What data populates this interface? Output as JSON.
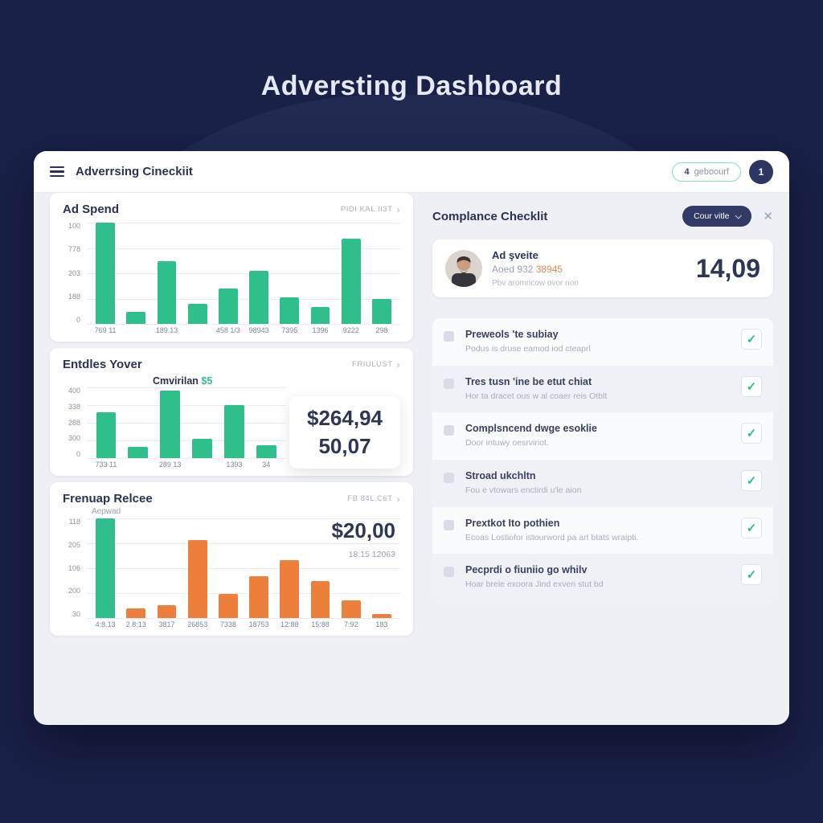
{
  "page": {
    "title": "Adversting Dashboard"
  },
  "colors": {
    "background_navy": "#1a2147",
    "panel_gray": "#eef0f5",
    "accent_green": "#2fbf8b",
    "accent_orange": "#ec7f3b",
    "dark_text": "#2e3656",
    "dark_pill": "#333a66",
    "meta_orange": "#e08a5a"
  },
  "navbar": {
    "title": "Adverrsing Cineckiit",
    "action_icon": "4",
    "action_label": "geboourf",
    "avatar_glyph": "1"
  },
  "chart_data": [
    {
      "type": "bar",
      "title": "Ad Spend",
      "color": "#2fbf8b",
      "yticks": [
        "100",
        "778",
        "203",
        "188",
        "0"
      ],
      "values": [
        100,
        12,
        62,
        20,
        35,
        52,
        26,
        17,
        84,
        25
      ],
      "labels": [
        "769 11",
        "",
        "189.13",
        "",
        "458 1/3",
        "98943",
        "7395",
        "1396",
        "9222",
        "298"
      ]
    },
    {
      "type": "bar",
      "title": "Entdles Yover",
      "color": "#2fbf8b",
      "yticks": [
        "400",
        "338",
        "288",
        "300",
        "0"
      ],
      "values": [
        65,
        16,
        95,
        27,
        75,
        18
      ],
      "labels": [
        "733 11",
        "",
        "289 13",
        "",
        "1393",
        "34"
      ]
    },
    {
      "type": "bar",
      "title": "Frenuap Relcee",
      "color": "#ec7f3b",
      "colors": [
        "#2fbf8b"
      ],
      "yticks": [
        "118",
        "205",
        "106",
        "200",
        "30"
      ],
      "values": [
        100,
        10,
        13,
        78,
        24,
        42,
        58,
        37,
        18,
        4
      ],
      "labels": [
        "4:8.13",
        "2.8:13",
        "3817",
        "26853",
        "7338",
        "18753",
        "12:88",
        "15:88",
        "7:92",
        "183"
      ]
    }
  ],
  "left": {
    "ad_spend": {
      "title": "Ad Spend",
      "link": "PIDI KAL.II3T",
      "chevron": "›"
    },
    "entdles": {
      "title": "Entdles Yover",
      "link": "FRIULUST",
      "chevron": "›",
      "annotation": "Cmvirilan",
      "annotation_value": "$5",
      "big_value_line1": "$264,94",
      "big_value_line2": "50,07"
    },
    "frenuap": {
      "title": "Frenuap Relcee",
      "link": "FB 84L.C6T",
      "chevron": "›",
      "sub_label": "Aepwad",
      "big_value": "$20,00",
      "big_value_sub": "18:15 12063"
    }
  },
  "right": {
    "title": "Complance Checklit",
    "dropdown_label": "Cour vitle",
    "close_glyph": "✕",
    "check_glyph": "✓",
    "summary": {
      "name": "Ad şveite",
      "meta_gray": "Aoed 932",
      "meta_orange": "38945",
      "note": "Pbv aromncow ovor non",
      "value": "14,09"
    },
    "checklist": [
      {
        "title": "Preweols 'te subiay",
        "subtitle": "Podus is druse eamod iod cteaprl",
        "checked": true
      },
      {
        "title": "Tres tusn 'ine be etut chiat",
        "subtitle": "Hor ta dracet ous w al coaer reis Otblt",
        "checked": true
      },
      {
        "title": "Complsncend dwge esoklie",
        "subtitle": "Door intuwy oesrviriot.",
        "checked": true
      },
      {
        "title": "Stroad ukchltn",
        "subtitle": "Fou e vtowars enctirdi u'le aion",
        "checked": true
      },
      {
        "title": "Prextkot Ito pothien",
        "subtitle": "Ecoas Lostiofor istourword pa art btats wraipti.",
        "checked": true
      },
      {
        "title": "Pecprdi o fiuniio go whilv",
        "subtitle": "Hoar brele exoora Jind exven stut bd",
        "checked": true
      }
    ]
  }
}
